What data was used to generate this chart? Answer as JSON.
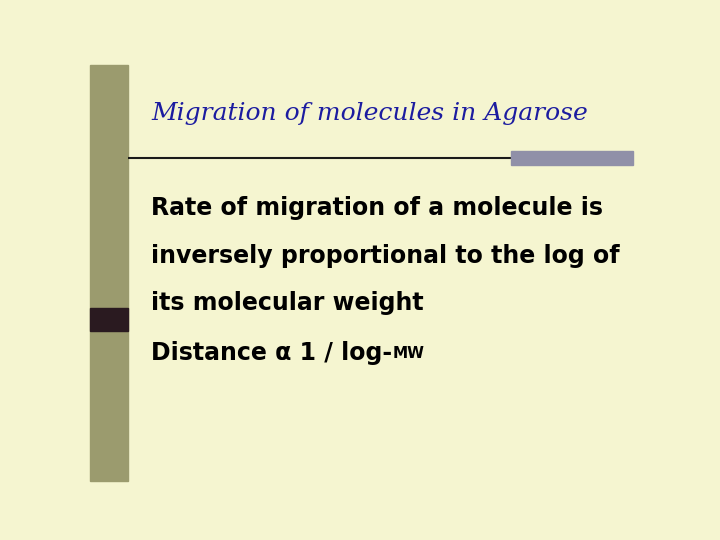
{
  "bg_color": "#f5f5d0",
  "left_bar_color": "#9b9b6e",
  "left_bar_dark_color": "#2a1a20",
  "title": "Migration of molecules in Agarose",
  "title_color": "#1c1ca0",
  "title_fontsize": 18,
  "line_color": "#1a1a1a",
  "line_right_rect_color": "#9090a8",
  "body_line1": "Rate of migration of a molecule is",
  "body_line2": "inversely proportional to the log of",
  "body_line3": "its molecular weight",
  "body_fontsize": 17,
  "formula_prefix": "Distance α 1 / log-",
  "formula_suffix": "MW",
  "formula_fontsize_main": 17,
  "formula_fontsize_sub": 11,
  "body_color": "#000000"
}
